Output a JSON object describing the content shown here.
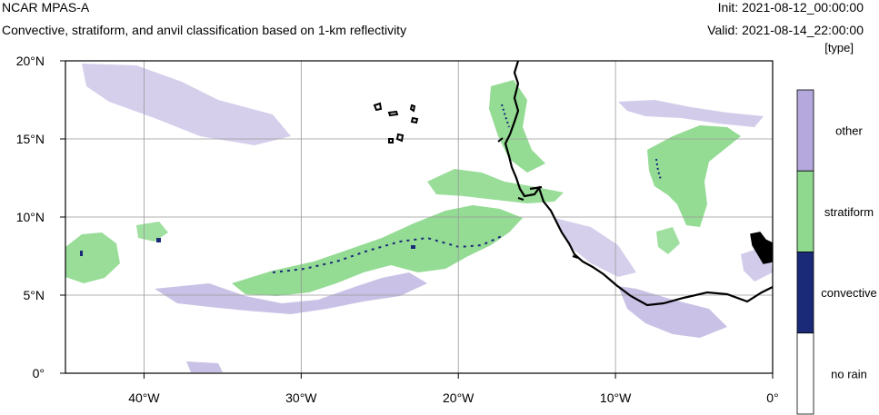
{
  "header": {
    "model": "NCAR MPAS-A",
    "description": "Convective, stratiform, and anvil classification based on 1-km reflectivity",
    "init": "Init: 2021-08-12_00:00:00",
    "valid": "Valid: 2021-08-14_22:00:00",
    "units": "[type]"
  },
  "map": {
    "lon_range": [
      -45,
      0
    ],
    "lat_range": [
      0,
      20
    ],
    "lat_ticks": [
      {
        "value": 0,
        "label": "0°"
      },
      {
        "value": 5,
        "label": "5°N"
      },
      {
        "value": 10,
        "label": "10°N"
      },
      {
        "value": 15,
        "label": "15°N"
      },
      {
        "value": 20,
        "label": "20°N"
      }
    ],
    "lon_ticks": [
      {
        "value": -40,
        "label": "40°W"
      },
      {
        "value": -30,
        "label": "30°W"
      },
      {
        "value": -20,
        "label": "20°W"
      },
      {
        "value": -10,
        "label": "10°W"
      },
      {
        "value": 0,
        "label": "0°"
      }
    ],
    "grid": true
  },
  "legend": {
    "categories": [
      {
        "label": "other",
        "color": "#b4a8dc"
      },
      {
        "label": "stratiform",
        "color": "#8ed98e"
      },
      {
        "label": "convective",
        "color": "#1a2a78"
      },
      {
        "label": "no rain",
        "color": "#ffffff"
      }
    ]
  },
  "colors": {
    "other": "#b4a8dc",
    "stratiform": "#8ed98e",
    "convective": "#1a2a78",
    "coastline": "#000000",
    "gridline": "#999999"
  }
}
